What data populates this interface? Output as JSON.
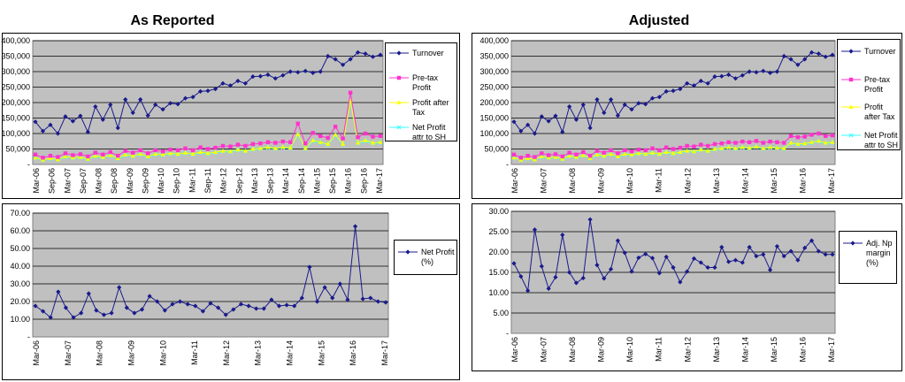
{
  "titles": {
    "left": "As Reported",
    "right": "Adjusted"
  },
  "colors": {
    "turnover": "#1a1a8c",
    "pretax": "#ff33cc",
    "pat": "#ffff00",
    "np": "#33ffff",
    "margin": "#1a1a8c",
    "plot_bg": "#c0c0c0"
  },
  "chart_data": [
    {
      "id": "reported_top",
      "type": "line",
      "title": "As Reported",
      "ylim": [
        0,
        400000
      ],
      "yticks": [
        "-",
        "50,000",
        "100,000",
        "150,000",
        "200,000",
        "250,000",
        "300,000",
        "350,000",
        "400,000"
      ],
      "xticks": [
        "Mar-06",
        "Sep-06",
        "Mar-07",
        "Sep-07",
        "Mar-08",
        "Sep-08",
        "Mar-09",
        "Sep-09",
        "Mar-10",
        "Sep-10",
        "Mar-11",
        "Sep-11",
        "Mar-12",
        "Sep-12",
        "Mar-13",
        "Sep-13",
        "Mar-14",
        "Sep-14",
        "Mar-15",
        "Sep-15",
        "Mar-16",
        "Sep-16",
        "Mar-17"
      ],
      "series": [
        {
          "name": "Turnover",
          "color": "#1a1a8c",
          "marker": "diamond",
          "values": [
            138000,
            108000,
            128000,
            100000,
            155000,
            140000,
            157000,
            105000,
            187000,
            145000,
            193000,
            118000,
            210000,
            167000,
            210000,
            158000,
            193000,
            178000,
            198000,
            195000,
            214000,
            218000,
            236000,
            238000,
            244000,
            262000,
            255000,
            270000,
            262000,
            284000,
            285000,
            290000,
            278000,
            288000,
            300000,
            298000,
            302000,
            296000,
            300000,
            350000,
            340000,
            322000,
            340000,
            362000,
            358000,
            348000,
            354000
          ]
        },
        {
          "name": "Pre-tax Profit",
          "color": "#ff33cc",
          "marker": "square",
          "values": [
            32000,
            22000,
            28000,
            24000,
            36000,
            30000,
            33000,
            26000,
            38000,
            32000,
            40000,
            28000,
            44000,
            38000,
            46000,
            36000,
            46000,
            42000,
            48000,
            46000,
            52000,
            46000,
            55000,
            50000,
            54000,
            60000,
            58000,
            64000,
            60000,
            66000,
            68000,
            72000,
            70000,
            74000,
            72000,
            132000,
            68000,
            102000,
            92000,
            86000,
            122000,
            84000,
            232000,
            88000,
            100000,
            90000,
            92000
          ]
        },
        {
          "name": "Profit after Tax",
          "color": "#ffff00",
          "marker": "triangle",
          "values": [
            22000,
            15000,
            20000,
            16000,
            26000,
            22000,
            24000,
            18000,
            28000,
            24000,
            30000,
            20000,
            32000,
            28000,
            34000,
            26000,
            34000,
            32000,
            36000,
            34000,
            38000,
            34000,
            40000,
            36000,
            40000,
            44000,
            42000,
            48000,
            44000,
            50000,
            52000,
            56000,
            52000,
            56000,
            54000,
            98000,
            52000,
            78000,
            72000,
            66000,
            96000,
            66000,
            205000,
            70000,
            78000,
            70000,
            72000
          ]
        },
        {
          "name": "Net Profit attr to SH",
          "color": "#33ffff",
          "marker": "x",
          "values": [
            20000,
            14000,
            18000,
            15000,
            24000,
            20000,
            22000,
            16000,
            26000,
            22000,
            28000,
            18000,
            30000,
            26000,
            32000,
            24000,
            32000,
            30000,
            34000,
            32000,
            36000,
            32000,
            38000,
            34000,
            38000,
            42000,
            40000,
            46000,
            42000,
            48000,
            50000,
            54000,
            50000,
            54000,
            52000,
            95000,
            50000,
            75000,
            70000,
            64000,
            93000,
            64000,
            200000,
            68000,
            75000,
            68000,
            70000
          ]
        }
      ]
    },
    {
      "id": "adjusted_top",
      "type": "line",
      "title": "Adjusted",
      "ylim": [
        0,
        400000
      ],
      "yticks": [
        "-",
        "50,000",
        "100,000",
        "150,000",
        "200,000",
        "250,000",
        "300,000",
        "350,000",
        "400,000"
      ],
      "xticks": [
        "Mar-06",
        "Mar-07",
        "Mar-08",
        "Mar-09",
        "Mar-10",
        "Mar-11",
        "Mar-12",
        "Mar-13",
        "Mar-14",
        "Mar-15",
        "Mar-16",
        "Mar-17"
      ],
      "series": [
        {
          "name": "Turnover",
          "color": "#1a1a8c",
          "marker": "diamond",
          "values": [
            138000,
            108000,
            128000,
            100000,
            155000,
            140000,
            157000,
            105000,
            187000,
            145000,
            193000,
            118000,
            210000,
            167000,
            210000,
            158000,
            193000,
            178000,
            198000,
            195000,
            214000,
            218000,
            236000,
            238000,
            244000,
            262000,
            255000,
            270000,
            262000,
            284000,
            285000,
            290000,
            278000,
            288000,
            300000,
            298000,
            302000,
            296000,
            300000,
            350000,
            340000,
            322000,
            340000,
            362000,
            358000,
            348000,
            354000
          ]
        },
        {
          "name": "Pre-tax Profit",
          "color": "#ff33cc",
          "marker": "square",
          "values": [
            32000,
            22000,
            28000,
            24000,
            36000,
            30000,
            33000,
            26000,
            38000,
            32000,
            40000,
            28000,
            44000,
            38000,
            46000,
            36000,
            46000,
            42000,
            48000,
            46000,
            52000,
            46000,
            55000,
            50000,
            54000,
            60000,
            58000,
            64000,
            60000,
            66000,
            68000,
            72000,
            70000,
            74000,
            72000,
            76000,
            70000,
            74000,
            72000,
            70000,
            92000,
            88000,
            90000,
            96000,
            100000,
            92000,
            94000
          ]
        },
        {
          "name": "Profit after Tax",
          "color": "#ffff00",
          "marker": "triangle",
          "values": [
            22000,
            15000,
            20000,
            16000,
            26000,
            22000,
            24000,
            18000,
            28000,
            24000,
            30000,
            20000,
            32000,
            28000,
            34000,
            26000,
            34000,
            32000,
            36000,
            34000,
            38000,
            34000,
            40000,
            36000,
            40000,
            44000,
            42000,
            48000,
            44000,
            50000,
            52000,
            56000,
            52000,
            56000,
            54000,
            58000,
            52000,
            56000,
            54000,
            52000,
            70000,
            66000,
            68000,
            72000,
            76000,
            70000,
            72000
          ]
        },
        {
          "name": "Net Profit attr to SH",
          "color": "#33ffff",
          "marker": "x",
          "values": [
            20000,
            14000,
            18000,
            15000,
            24000,
            20000,
            22000,
            16000,
            26000,
            22000,
            28000,
            18000,
            30000,
            26000,
            32000,
            24000,
            32000,
            30000,
            34000,
            32000,
            36000,
            32000,
            38000,
            34000,
            38000,
            42000,
            40000,
            46000,
            42000,
            48000,
            50000,
            54000,
            50000,
            54000,
            52000,
            56000,
            50000,
            54000,
            52000,
            50000,
            68000,
            64000,
            66000,
            70000,
            74000,
            68000,
            70000
          ]
        }
      ]
    },
    {
      "id": "reported_bottom",
      "type": "line",
      "ylim": [
        0,
        70
      ],
      "yticks": [
        "-",
        "10.00",
        "20.00",
        "30.00",
        "40.00",
        "50.00",
        "60.00",
        "70.00"
      ],
      "xticks": [
        "Mar-06",
        "Mar-07",
        "Mar-08",
        "Mar-09",
        "Mar-10",
        "Mar-11",
        "Mar-12",
        "Mar-13",
        "Mar-14",
        "Mar-15",
        "Mar-16",
        "Mar-17"
      ],
      "series": [
        {
          "name": "Net Profit (%)",
          "color": "#1a1a8c",
          "marker": "diamond",
          "values": [
            17.5,
            14.5,
            11.0,
            25.5,
            16.5,
            11.0,
            13.5,
            24.5,
            15.0,
            12.5,
            13.5,
            28.0,
            16.5,
            13.5,
            15.5,
            23.0,
            20.0,
            15.0,
            18.5,
            20.0,
            18.5,
            17.5,
            14.5,
            19.0,
            16.5,
            12.5,
            15.5,
            18.5,
            17.5,
            16.0,
            16.0,
            21.0,
            17.5,
            18.0,
            17.5,
            22.0,
            39.5,
            20.0,
            28.0,
            22.0,
            30.0,
            21.0,
            62.5,
            21.5,
            22.0,
            20.0,
            19.5
          ]
        }
      ]
    },
    {
      "id": "adjusted_bottom",
      "type": "line",
      "ylim": [
        0,
        30
      ],
      "yticks": [
        "-",
        "5.00",
        "10.00",
        "15.00",
        "20.00",
        "25.00",
        "30.00"
      ],
      "xticks": [
        "Mar-06",
        "Mar-07",
        "Mar-08",
        "Mar-09",
        "Mar-10",
        "Mar-11",
        "Mar-12",
        "Mar-13",
        "Mar-14",
        "Mar-15",
        "Mar-16",
        "Mar-17"
      ],
      "series": [
        {
          "name": "Adj. Np margin (%)",
          "color": "#1a1a8c",
          "marker": "diamond",
          "values": [
            17.2,
            14.0,
            10.5,
            25.5,
            16.5,
            11.0,
            13.8,
            24.2,
            15.0,
            12.4,
            13.6,
            28.0,
            16.8,
            13.5,
            15.8,
            22.8,
            19.8,
            15.2,
            18.6,
            19.5,
            18.5,
            14.8,
            18.8,
            16.2,
            12.6,
            15.2,
            18.4,
            17.4,
            16.2,
            16.2,
            21.2,
            17.6,
            18.0,
            17.4,
            21.2,
            19.0,
            19.4,
            15.6,
            21.4,
            19.0,
            20.2,
            18.0,
            21.0,
            22.8,
            20.2,
            19.4,
            19.4
          ]
        }
      ]
    }
  ]
}
